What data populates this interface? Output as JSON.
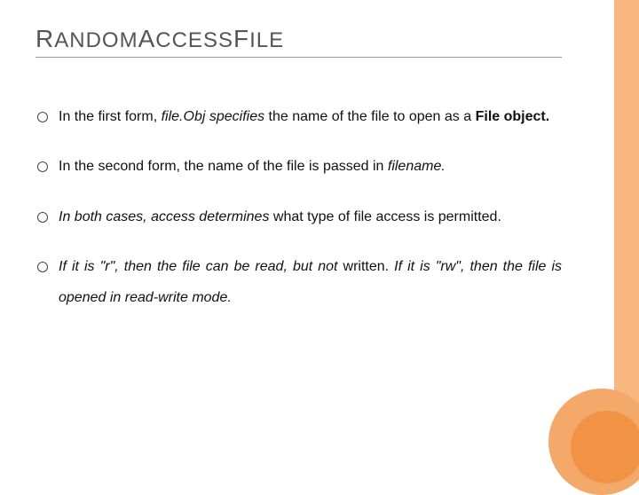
{
  "title": {
    "seg1_cap": "R",
    "seg1_rest": "ANDOM",
    "seg2_cap": "A",
    "seg2_rest": "CCESS",
    "seg3_cap": "F",
    "seg3_rest": "ILE"
  },
  "bullets": {
    "b1": {
      "t1": "In the first form, ",
      "t2": "file.Obj specifies",
      "t3": " the name of the file to open as a ",
      "t4": "File object."
    },
    "b2": {
      "t1": "In the second form, the name of the file is passed in ",
      "t2": "filename."
    },
    "b3": {
      "t1": "In both cases, access determines",
      "t2": " what type of file access is permitted."
    },
    "b4": {
      "t1": "If it is \"r\", then the file can be read, but not",
      "t2": " written. ",
      "t3": "If it is \"rw\", then the file is opened in read-write mode."
    }
  },
  "colors": {
    "accent_light": "#f7b77f",
    "accent_mid": "#f4a869",
    "accent_dark": "#f19245",
    "title_color": "#555555",
    "text_color": "#111111",
    "rule_color": "#999999"
  }
}
